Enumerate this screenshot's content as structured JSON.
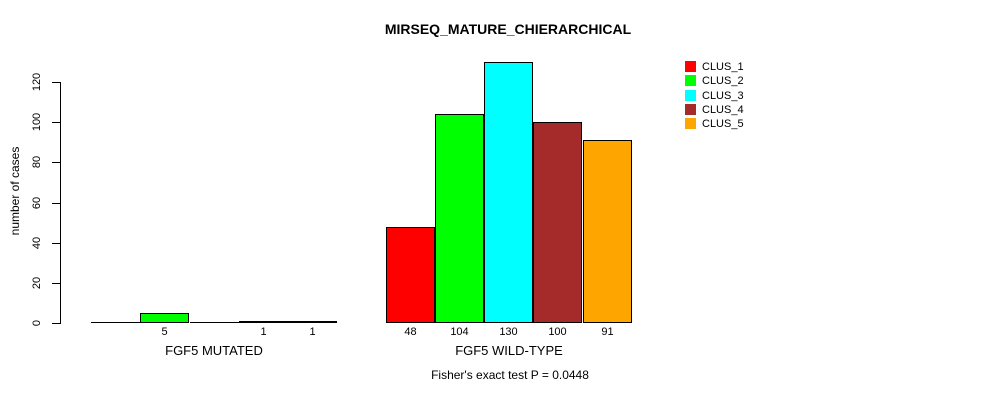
{
  "chart_data": {
    "type": "bar",
    "title": "MIRSEQ_MATURE_CHIERARCHICAL",
    "ylabel": "number of cases",
    "xlabel": "",
    "yticks": [
      0,
      20,
      40,
      60,
      80,
      100,
      120
    ],
    "ylim": [
      0,
      133
    ],
    "grid": false,
    "categories": [
      "FGF5 MUTATED",
      "FGF5 WILD-TYPE"
    ],
    "series": [
      {
        "name": "CLUS_1",
        "color": "#FF0000",
        "values": [
          0,
          48
        ]
      },
      {
        "name": "CLUS_2",
        "color": "#00FF00",
        "values": [
          5,
          104
        ]
      },
      {
        "name": "CLUS_3",
        "color": "#00FFFF",
        "values": [
          0,
          130
        ]
      },
      {
        "name": "CLUS_4",
        "color": "#A52A2A",
        "values": [
          1,
          100
        ]
      },
      {
        "name": "CLUS_5",
        "color": "#FFA500",
        "values": [
          1,
          91
        ]
      }
    ],
    "shown_bar_labels": [
      [
        "",
        "5",
        "",
        "1",
        "1"
      ],
      [
        "48",
        "104",
        "130",
        "100",
        "91"
      ]
    ],
    "legend": {
      "position": "top-right",
      "entries": [
        "CLUS_1",
        "CLUS_2",
        "CLUS_3",
        "CLUS_4",
        "CLUS_5"
      ]
    },
    "footer": "Fisher's exact test P = 0.0448",
    "bar_outline_color": "#000000",
    "background_color": "#FFFFFF"
  }
}
